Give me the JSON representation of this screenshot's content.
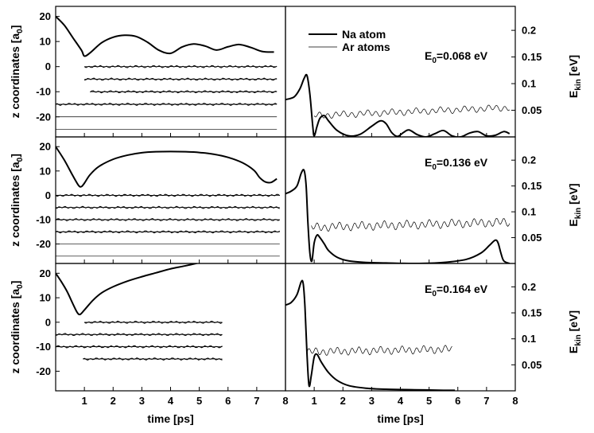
{
  "chart_data": {
    "type": "line",
    "shared_x_axis": {
      "label": "time [ps]",
      "range": [
        0,
        8
      ],
      "ticks": [
        1,
        2,
        3,
        4,
        5,
        6,
        7,
        8
      ]
    },
    "left_column": {
      "ylabel": "z coordinates [a",
      "ylabel_sub": "0",
      "ylabel_suffix": "]",
      "ylim": [
        -28,
        24
      ],
      "yticks": [
        20,
        10,
        0,
        -10,
        -20
      ]
    },
    "right_column": {
      "ylabel": "E",
      "ylabel_sub": "kin",
      "ylabel_suffix": " [eV]",
      "ylim": [
        0,
        0.245
      ],
      "yticks": [
        0.2,
        0.15,
        0.1,
        0.05
      ],
      "ytick_labels": [
        "0.2",
        "0.15",
        "0.1",
        "0.05"
      ]
    },
    "legend": [
      {
        "name": "Na atom",
        "style": "thick"
      },
      {
        "name": "Ar atoms",
        "style": "thin"
      }
    ],
    "panels": [
      {
        "annotation": "E",
        "annotation_sub": "0",
        "annotation_value": "=0.068 eV",
        "z_na": {
          "x": [
            0,
            0.3,
            0.6,
            0.9,
            1.0,
            1.2,
            1.6,
            2.0,
            2.4,
            2.8,
            3.2,
            3.6,
            4.0,
            4.4,
            4.8,
            5.2,
            5.6,
            6.0,
            6.4,
            6.8,
            7.2,
            7.6
          ],
          "y": [
            20,
            16.5,
            11.5,
            6.5,
            4.2,
            5.5,
            9.5,
            11.7,
            12.5,
            12.0,
            9.7,
            6.5,
            5.3,
            7.8,
            9.0,
            8.2,
            6.6,
            7.9,
            8.8,
            7.6,
            6.0,
            5.8
          ]
        },
        "z_ar_layers": [
          {
            "level": 0,
            "x_start": 1.0,
            "x_end": 7.7
          },
          {
            "level": -5,
            "x_start": 1.0,
            "x_end": 7.7
          },
          {
            "level": -10,
            "x_start": 1.2,
            "x_end": 7.7
          },
          {
            "level": -15,
            "x_start": 0,
            "x_end": 7.7
          },
          {
            "level": -20,
            "x_start": 0,
            "x_end": 7.7
          },
          {
            "level": -25,
            "x_start": 0,
            "x_end": 7.7
          }
        ],
        "ekin_na": {
          "x": [
            0,
            0.3,
            0.5,
            0.65,
            0.75,
            0.85,
            0.95,
            1.0,
            1.1,
            1.2,
            1.35,
            1.5,
            1.8,
            2.2,
            2.6,
            3.0,
            3.3,
            3.5,
            3.7,
            3.9,
            4.1,
            4.3,
            4.6,
            4.9,
            5.2,
            5.5,
            5.8,
            6.1,
            6.4,
            6.7,
            7.0,
            7.3,
            7.6,
            7.8
          ],
          "y": [
            0.07,
            0.075,
            0.09,
            0.11,
            0.115,
            0.08,
            0.02,
            0.002,
            0.02,
            0.035,
            0.04,
            0.03,
            0.012,
            0.002,
            0.005,
            0.02,
            0.03,
            0.025,
            0.008,
            0.001,
            0.008,
            0.013,
            0.004,
            0.0,
            0.006,
            0.012,
            0.002,
            0.0,
            0.007,
            0.01,
            0.002,
            0.003,
            0.01,
            0.006
          ]
        },
        "ekin_ar": {
          "x_start": 1.0,
          "x_end": 7.8,
          "base_start": 0.04,
          "base_end": 0.055,
          "amplitude": 0.006,
          "period": 0.28
        }
      },
      {
        "annotation": "E",
        "annotation_sub": "0",
        "annotation_value": "=0.136 eV",
        "z_na": {
          "x": [
            0,
            0.3,
            0.6,
            0.8,
            0.9,
            1.0,
            1.2,
            1.5,
            2.0,
            2.5,
            3.0,
            3.5,
            4.0,
            4.5,
            5.0,
            5.5,
            6.0,
            6.5,
            6.9,
            7.1,
            7.3,
            7.5,
            7.7
          ],
          "y": [
            20,
            14.5,
            8.0,
            4.0,
            3.6,
            5.0,
            8.5,
            11.8,
            14.8,
            16.5,
            17.5,
            17.9,
            18.0,
            17.9,
            17.6,
            16.9,
            15.6,
            13.4,
            10.3,
            7.3,
            5.5,
            5.3,
            6.8
          ]
        },
        "z_ar_layers": [
          {
            "level": 0,
            "x_start": 0,
            "x_end": 7.8
          },
          {
            "level": -5,
            "x_start": 0,
            "x_end": 7.8
          },
          {
            "level": -10,
            "x_start": 0,
            "x_end": 7.8
          },
          {
            "level": -15,
            "x_start": 0,
            "x_end": 7.8
          },
          {
            "level": -20,
            "x_start": 0,
            "x_end": 7.8
          },
          {
            "level": -25,
            "x_start": 0,
            "x_end": 7.8
          }
        ],
        "ekin_na": {
          "x": [
            0,
            0.2,
            0.4,
            0.55,
            0.65,
            0.72,
            0.78,
            0.85,
            0.92,
            1.0,
            1.1,
            1.2,
            1.35,
            1.5,
            1.8,
            2.2,
            2.8,
            3.5,
            4.5,
            5.5,
            6.3,
            6.8,
            7.1,
            7.3,
            7.4,
            7.5,
            7.6,
            7.8
          ],
          "y": [
            0.135,
            0.14,
            0.15,
            0.175,
            0.18,
            0.15,
            0.08,
            0.02,
            0.005,
            0.04,
            0.055,
            0.05,
            0.038,
            0.025,
            0.012,
            0.005,
            0.002,
            0.001,
            0.0,
            0.002,
            0.008,
            0.02,
            0.035,
            0.045,
            0.04,
            0.02,
            0.005,
            0.0
          ]
        },
        "ekin_ar": {
          "x_start": 0.9,
          "x_end": 7.8,
          "base_start": 0.07,
          "base_end": 0.08,
          "amplitude": 0.008,
          "period": 0.26
        }
      },
      {
        "annotation": "E",
        "annotation_sub": "0",
        "annotation_value": "=0.164 eV",
        "z_na": {
          "x": [
            0,
            0.2,
            0.4,
            0.6,
            0.75,
            0.85,
            1.0,
            1.3,
            1.6,
            2.0,
            2.5,
            3.0,
            3.5,
            4.0,
            4.5,
            5.0
          ],
          "y": [
            20,
            16.5,
            12.5,
            7.5,
            4.0,
            3.2,
            5.0,
            9.0,
            12.0,
            14.5,
            16.8,
            18.6,
            20.2,
            21.8,
            23.0,
            24.3
          ]
        },
        "z_ar_layers": [
          {
            "level": 0,
            "x_start": 1.0,
            "x_end": 5.8
          },
          {
            "level": -5,
            "x_start": 0,
            "x_end": 5.8
          },
          {
            "level": -10,
            "x_start": 0,
            "x_end": 5.8
          },
          {
            "level": -15,
            "x_start": 0.95,
            "x_end": 5.8
          }
        ],
        "ekin_na": {
          "x": [
            0,
            0.2,
            0.4,
            0.55,
            0.62,
            0.68,
            0.75,
            0.82,
            0.9,
            1.0,
            1.1,
            1.25,
            1.5,
            1.8,
            2.2,
            2.8,
            3.5,
            4.5,
            5.5,
            5.9
          ],
          "y": [
            0.165,
            0.17,
            0.185,
            0.21,
            0.205,
            0.16,
            0.07,
            0.01,
            0.03,
            0.065,
            0.07,
            0.055,
            0.035,
            0.02,
            0.01,
            0.005,
            0.003,
            0.002,
            0.001,
            0.001
          ]
        },
        "ekin_ar": {
          "x_start": 0.75,
          "x_end": 5.8,
          "base_start": 0.075,
          "base_end": 0.08,
          "amplitude": 0.007,
          "period": 0.25
        }
      }
    ]
  }
}
